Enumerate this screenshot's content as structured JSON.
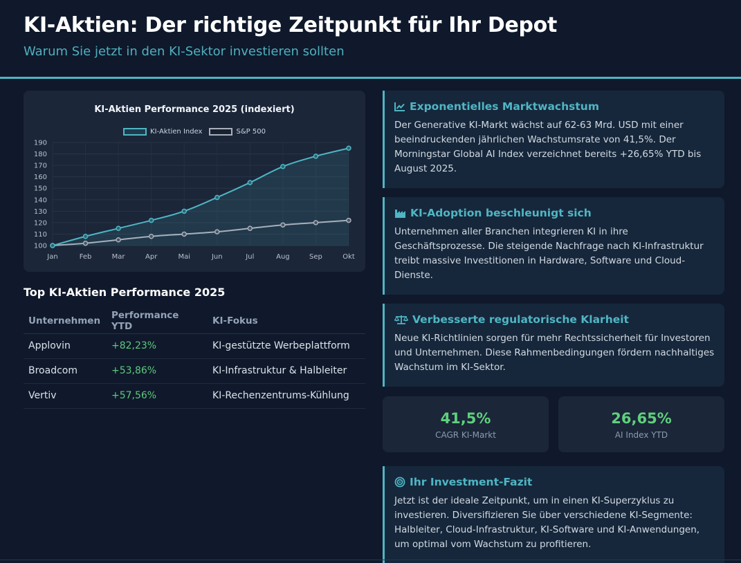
{
  "header": {
    "title": "KI-Aktien: Der richtige Zeitpunkt für Ihr Depot",
    "subtitle": "Warum Sie jetzt in den KI-Sektor investieren sollten"
  },
  "colors": {
    "accent": "#4fb6c4",
    "positive": "#5fc97c",
    "background": "#0f192b",
    "sp500_line": "#a8b0bd"
  },
  "chart_data": {
    "type": "line",
    "title": "KI-Aktien Performance 2025 (indexiert)",
    "categories": [
      "Jan",
      "Feb",
      "Mar",
      "Apr",
      "Mai",
      "Jun",
      "Jul",
      "Aug",
      "Sep",
      "Okt"
    ],
    "series": [
      {
        "name": "KI-Aktien Index",
        "values": [
          100,
          108,
          115,
          122,
          130,
          142,
          155,
          169,
          178,
          185
        ],
        "color": "#4fb6c4",
        "fill": true
      },
      {
        "name": "S&P 500",
        "values": [
          100,
          102,
          105,
          108,
          110,
          112,
          115,
          118,
          120,
          122
        ],
        "color": "#a8b0bd",
        "fill": false
      }
    ],
    "yticks": [
      100,
      110,
      120,
      130,
      140,
      150,
      160,
      170,
      180,
      190
    ],
    "ylim": [
      100,
      190
    ],
    "xlabel": "",
    "ylabel": "",
    "grid": true,
    "legend": "top-center"
  },
  "table": {
    "title": "Top KI-Aktien Performance 2025",
    "headers": [
      "Unternehmen",
      "Performance YTD",
      "KI-Fokus"
    ],
    "rows": [
      {
        "company": "Applovin",
        "performance": "+82,23%",
        "focus": "KI-gestützte Werbeplattform"
      },
      {
        "company": "Broadcom",
        "performance": "+53,86%",
        "focus": "KI-Infrastruktur & Halbleiter"
      },
      {
        "company": "Vertiv",
        "performance": "+57,56%",
        "focus": "KI-Rechenzentrums-Kühlung"
      }
    ]
  },
  "cards": [
    {
      "icon": "chart-line-icon",
      "title": "Exponentielles Marktwachstum",
      "text": "Der Generative KI-Markt wächst auf 62-63 Mrd. USD mit einer beeindruckenden jährlichen Wachstumsrate von 41,5%. Der Morningstar Global AI Index verzeichnet bereits +26,65% YTD bis August 2025."
    },
    {
      "icon": "industry-icon",
      "title": "KI-Adoption beschleunigt sich",
      "text": "Unternehmen aller Branchen integrieren KI in ihre Geschäftsprozesse. Die steigende Nachfrage nach KI-Infrastruktur treibt massive Investitionen in Hardware, Software und Cloud-Dienste."
    },
    {
      "icon": "balance-scale-icon",
      "title": "Verbesserte regulatorische Klarheit",
      "text": "Neue KI-Richtlinien sorgen für mehr Rechtssicherheit für Investoren und Unternehmen. Diese Rahmenbedingungen fördern nachhaltiges Wachstum im KI-Sektor."
    },
    {
      "icon": "target-icon",
      "title": "Ihr Investment-Fazit",
      "text": "Jetzt ist der ideale Zeitpunkt, um in einen KI-Superzyklus zu investieren. Diversifizieren Sie über verschiedene KI-Segmente: Halbleiter, Cloud-Infrastruktur, KI-Software und KI-Anwendungen, um optimal vom Wachstum zu profitieren."
    }
  ],
  "stats": [
    {
      "value": "41,5%",
      "label": "CAGR KI-Markt"
    },
    {
      "value": "26,65%",
      "label": "AI Index YTD"
    }
  ]
}
